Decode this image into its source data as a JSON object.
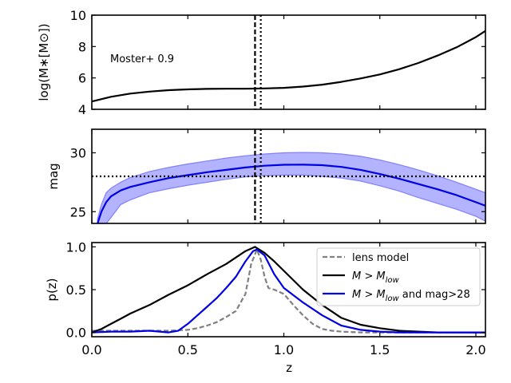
{
  "chart_data": [
    {
      "type": "line",
      "panel": "top",
      "ylabel": "log(M∗[M⊙])",
      "xlim": [
        0.0,
        2.05
      ],
      "ylim": [
        4,
        10
      ],
      "yticks": [
        4,
        6,
        8,
        10
      ],
      "ytick_labels": [
        "4",
        "6",
        "8",
        "10"
      ],
      "annotation": "Moster+ 0.9",
      "series": [
        {
          "name": "stellar mass",
          "color": "#000000",
          "x": [
            0.0,
            0.1,
            0.2,
            0.3,
            0.4,
            0.5,
            0.6,
            0.7,
            0.8,
            0.85,
            0.9,
            1.0,
            1.1,
            1.2,
            1.3,
            1.4,
            1.5,
            1.6,
            1.7,
            1.8,
            1.9,
            2.0,
            2.05
          ],
          "y": [
            4.5,
            4.8,
            5.0,
            5.13,
            5.22,
            5.27,
            5.3,
            5.31,
            5.31,
            5.32,
            5.33,
            5.37,
            5.45,
            5.57,
            5.75,
            5.97,
            6.22,
            6.55,
            6.95,
            7.42,
            7.95,
            8.6,
            9.0
          ]
        }
      ],
      "vlines": [
        {
          "x": 0.85,
          "style": "dashed"
        },
        {
          "x": 0.88,
          "style": "dotted"
        }
      ]
    },
    {
      "type": "area",
      "panel": "middle",
      "ylabel": "mag",
      "xlim": [
        0.0,
        2.05
      ],
      "ylim": [
        24,
        32
      ],
      "yticks": [
        25,
        30
      ],
      "ytick_labels": [
        "25",
        "30"
      ],
      "series": [
        {
          "name": "magnitude",
          "color": "#0000e6",
          "x": [
            0.03,
            0.05,
            0.075,
            0.1,
            0.15,
            0.2,
            0.3,
            0.4,
            0.5,
            0.6,
            0.7,
            0.8,
            0.9,
            1.0,
            1.1,
            1.2,
            1.3,
            1.4,
            1.5,
            1.6,
            1.7,
            1.8,
            1.9,
            2.0,
            2.05
          ],
          "y": [
            24.0,
            25.0,
            25.8,
            26.3,
            26.8,
            27.1,
            27.5,
            27.85,
            28.1,
            28.35,
            28.55,
            28.75,
            28.9,
            28.98,
            29.0,
            28.95,
            28.8,
            28.55,
            28.2,
            27.8,
            27.35,
            26.9,
            26.4,
            25.8,
            25.5
          ],
          "upper": [
            24.4,
            25.6,
            26.6,
            27.0,
            27.5,
            27.9,
            28.4,
            28.75,
            29.05,
            29.3,
            29.55,
            29.75,
            29.9,
            30.0,
            30.03,
            30.0,
            29.9,
            29.7,
            29.4,
            29.0,
            28.55,
            28.05,
            27.5,
            26.9,
            26.6
          ],
          "lower": [
            24.0,
            24.0,
            24.0,
            24.5,
            25.6,
            26.0,
            26.6,
            26.95,
            27.25,
            27.5,
            27.75,
            27.95,
            28.05,
            28.1,
            28.1,
            28.0,
            27.85,
            27.6,
            27.2,
            26.75,
            26.2,
            25.7,
            25.2,
            24.6,
            24.2
          ]
        }
      ],
      "hlines": [
        {
          "y": 28,
          "style": "dotted"
        }
      ],
      "vlines": [
        {
          "x": 0.85,
          "style": "dashed"
        },
        {
          "x": 0.88,
          "style": "dotted"
        }
      ]
    },
    {
      "type": "line",
      "panel": "bottom",
      "xlabel": "z",
      "ylabel": "p(z)",
      "xlim": [
        0.0,
        2.05
      ],
      "ylim": [
        -0.05,
        1.05
      ],
      "xticks": [
        0.0,
        0.5,
        1.0,
        1.5,
        2.0
      ],
      "xtick_labels": [
        "0.0",
        "0.5",
        "1.0",
        "1.5",
        "2.0"
      ],
      "yticks": [
        0.0,
        0.5,
        1.0
      ],
      "ytick_labels": [
        "0.0",
        "0.5",
        "1.0"
      ],
      "legend_location": "upper-right",
      "series": [
        {
          "name": "lens model",
          "color": "#808080",
          "style": "dashed",
          "x": [
            0.0,
            0.1,
            0.2,
            0.3,
            0.4,
            0.5,
            0.55,
            0.6,
            0.65,
            0.7,
            0.75,
            0.8,
            0.83,
            0.86,
            0.88,
            0.9,
            0.92,
            0.95,
            1.0,
            1.05,
            1.1,
            1.15,
            1.2,
            1.25,
            1.3,
            1.4,
            1.5,
            2.05
          ],
          "y": [
            0.02,
            0.02,
            0.02,
            0.02,
            0.02,
            0.03,
            0.05,
            0.08,
            0.12,
            0.18,
            0.25,
            0.45,
            0.8,
            0.97,
            0.85,
            0.65,
            0.52,
            0.5,
            0.45,
            0.32,
            0.2,
            0.1,
            0.04,
            0.02,
            0.01,
            0.0,
            0.0,
            0.0
          ]
        },
        {
          "name": "M > M_low",
          "color": "#000000",
          "style": "solid",
          "x": [
            0.0,
            0.05,
            0.1,
            0.15,
            0.2,
            0.3,
            0.4,
            0.5,
            0.6,
            0.7,
            0.8,
            0.85,
            0.9,
            0.95,
            1.0,
            1.1,
            1.2,
            1.3,
            1.4,
            1.5,
            1.6,
            1.7,
            1.8,
            1.9,
            2.05
          ],
          "y": [
            0.0,
            0.04,
            0.1,
            0.16,
            0.22,
            0.32,
            0.44,
            0.55,
            0.68,
            0.8,
            0.95,
            1.0,
            0.93,
            0.83,
            0.72,
            0.5,
            0.32,
            0.17,
            0.09,
            0.05,
            0.02,
            0.01,
            0.0,
            0.0,
            0.0
          ]
        },
        {
          "name": "M > M_low and mag>28",
          "color": "#0000e6",
          "style": "solid",
          "x": [
            0.0,
            0.1,
            0.2,
            0.3,
            0.4,
            0.45,
            0.5,
            0.55,
            0.6,
            0.65,
            0.7,
            0.75,
            0.8,
            0.84,
            0.86,
            0.9,
            0.95,
            1.0,
            1.1,
            1.2,
            1.3,
            1.4,
            1.5,
            1.6,
            2.05
          ],
          "y": [
            0.0,
            0.01,
            0.01,
            0.02,
            0.0,
            0.02,
            0.1,
            0.2,
            0.3,
            0.4,
            0.52,
            0.65,
            0.83,
            0.95,
            0.97,
            0.9,
            0.68,
            0.52,
            0.35,
            0.2,
            0.08,
            0.03,
            0.01,
            0.0,
            0.0
          ]
        }
      ],
      "legend": [
        {
          "label": "lens model",
          "color": "#808080",
          "style": "dashed"
        },
        {
          "label": "M > M",
          "sub": "low",
          "color": "#000000",
          "style": "solid"
        },
        {
          "label": "M > M",
          "sub": "low",
          "suffix": " and mag>28",
          "color": "#0000e6",
          "style": "solid"
        }
      ]
    }
  ],
  "colors": {
    "band_fill": "#8080ff",
    "axis": "#000000"
  }
}
